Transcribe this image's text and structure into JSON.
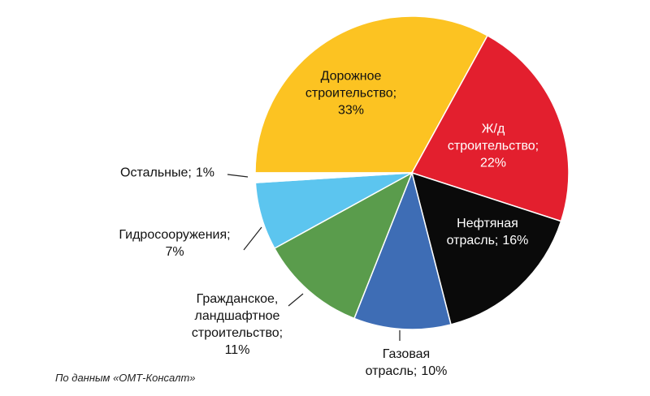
{
  "chart_data": {
    "type": "pie",
    "categories": [
      "Дорожное строительство;",
      "Ж/д строительство;",
      "Нефтяная отрасль;",
      "Газовая отрасль;",
      "Гражданское, ландшафтное строительство;",
      "Гидросооружения;",
      "Остальные;"
    ],
    "values": [
      33,
      22,
      16,
      10,
      11,
      7,
      1
    ],
    "value_labels": [
      "33%",
      "22%",
      "16%",
      "10%",
      "11%",
      "7%",
      "1%"
    ],
    "colors": [
      "#fcc322",
      "#e31f2e",
      "#0a0a0a",
      "#3e6db5",
      "#5a9c4c",
      "#5cc5ef",
      "#ffffff"
    ],
    "source": "По данным «ОМТ-Консалт»"
  }
}
